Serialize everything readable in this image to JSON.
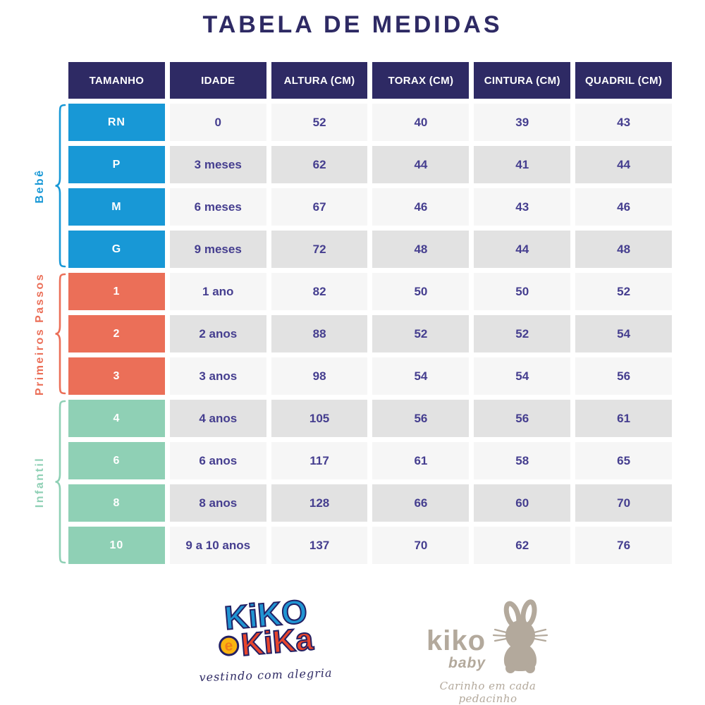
{
  "title": "TABELA DE MEDIDAS",
  "table": {
    "headers": [
      "TAMANHO",
      "IDADE",
      "ALTURA (CM)",
      "TORAX (CM)",
      "CINTURA (CM)",
      "QUADRIL (CM)"
    ],
    "groups": [
      {
        "id": "bebe",
        "label": "Bebê",
        "color": "#1898d6",
        "rows": [
          [
            "RN",
            "0",
            "52",
            "40",
            "39",
            "43"
          ],
          [
            "P",
            "3 meses",
            "62",
            "44",
            "41",
            "44"
          ],
          [
            "M",
            "6 meses",
            "67",
            "46",
            "43",
            "46"
          ],
          [
            "G",
            "9 meses",
            "72",
            "48",
            "44",
            "48"
          ]
        ]
      },
      {
        "id": "primeiros-passos",
        "label": "Primeiros Passos",
        "color": "#eb6f58",
        "rows": [
          [
            "1",
            "1 ano",
            "82",
            "50",
            "50",
            "52"
          ],
          [
            "2",
            "2 anos",
            "88",
            "52",
            "52",
            "54"
          ],
          [
            "3",
            "3 anos",
            "98",
            "54",
            "54",
            "56"
          ]
        ]
      },
      {
        "id": "infantil",
        "label": "Infantil",
        "color": "#8fd0b5",
        "rows": [
          [
            "4",
            "4 anos",
            "105",
            "56",
            "56",
            "61"
          ],
          [
            "6",
            "6 anos",
            "117",
            "61",
            "58",
            "65"
          ],
          [
            "8",
            "8 anos",
            "128",
            "66",
            "60",
            "70"
          ],
          [
            "10",
            "9 a 10 anos",
            "137",
            "70",
            "62",
            "76"
          ]
        ]
      }
    ]
  },
  "chart_data": {
    "type": "table",
    "title": "TABELA DE MEDIDAS",
    "columns": [
      "TAMANHO",
      "IDADE",
      "ALTURA (CM)",
      "TORAX (CM)",
      "CINTURA (CM)",
      "QUADRIL (CM)"
    ],
    "rows": [
      [
        "RN",
        "0",
        52,
        40,
        39,
        43
      ],
      [
        "P",
        "3 meses",
        62,
        44,
        41,
        44
      ],
      [
        "M",
        "6 meses",
        67,
        46,
        43,
        46
      ],
      [
        "G",
        "9 meses",
        72,
        48,
        44,
        48
      ],
      [
        "1",
        "1 ano",
        82,
        50,
        50,
        52
      ],
      [
        "2",
        "2 anos",
        88,
        52,
        52,
        54
      ],
      [
        "3",
        "3 anos",
        98,
        54,
        54,
        56
      ],
      [
        "4",
        "4 anos",
        105,
        56,
        56,
        61
      ],
      [
        "6",
        "6 anos",
        117,
        61,
        58,
        65
      ],
      [
        "8",
        "8 anos",
        128,
        66,
        60,
        70
      ],
      [
        "10",
        "9 a 10 anos",
        137,
        70,
        62,
        76
      ]
    ]
  },
  "footer": {
    "kiko_e_kika": {
      "word1": "KiKO",
      "conj": "e",
      "word2": "KiKa",
      "tagline": "vestindo com alegria"
    },
    "kiko_baby": {
      "name": "kiko",
      "sub": "baby",
      "icon": "bunny-icon",
      "tagline": "Carinho em cada pedacinho"
    }
  },
  "colors": {
    "navy": "#2e2a64",
    "cell_text": "#453e8f",
    "baby_blue": "#1898d6",
    "first_steps_coral": "#eb6f58",
    "kids_mint": "#8fd0b5",
    "row_light": "#f6f6f6",
    "row_dark": "#e2e2e2",
    "logo_blue": "#2095d3",
    "logo_red": "#e8452c",
    "logo_yellow": "#f9b410",
    "logo_outline": "#232063",
    "taupe": "#b3a99c"
  }
}
